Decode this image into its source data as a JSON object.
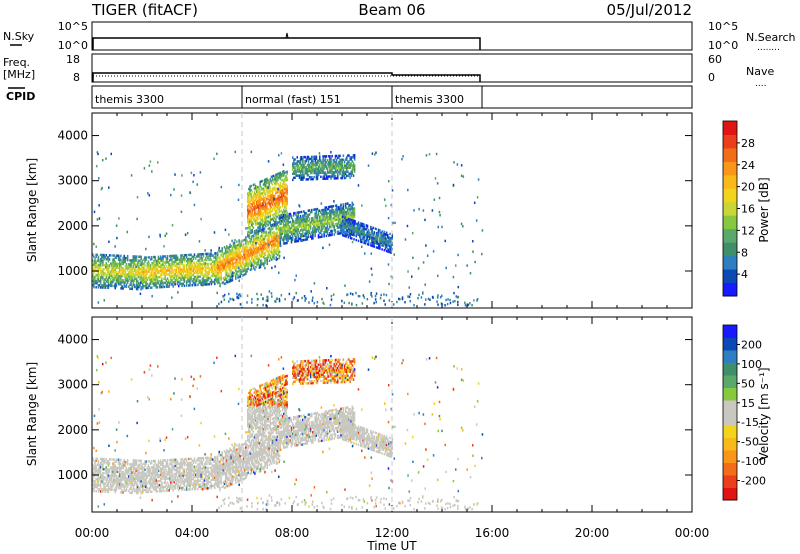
{
  "header": {
    "title": "TIGER (fitACF)",
    "beam": "Beam 06",
    "date": "05/Jul/2012"
  },
  "strip_nsky": {
    "left_label": "N.Sky",
    "left_ticks": [
      "10^5",
      "10^0"
    ],
    "right_ticks": [
      "10^5",
      "10^0"
    ],
    "right_label": "N.Search",
    "right_key": "........"
  },
  "strip_freq": {
    "left_label_line1": "Freq.",
    "left_label_line2": "[MHz]",
    "left_ticks": [
      "18",
      "8"
    ],
    "right_ticks": [
      "60",
      "0"
    ],
    "right_label": "Nave",
    "right_key": "...."
  },
  "cpid": {
    "label": "CPID",
    "segments": [
      {
        "label": "themis 3300",
        "start_h": 0.0,
        "end_h": 6.0
      },
      {
        "label": "normal (fast) 151",
        "start_h": 6.0,
        "end_h": 12.0
      },
      {
        "label": "themis 3300",
        "start_h": 12.0,
        "end_h": 15.6
      }
    ]
  },
  "chart_data": [
    {
      "type": "heatmap",
      "name": "power-panel",
      "ylabel": "Slant Range [km]",
      "yticks": [
        "1000",
        "2000",
        "3000",
        "4000"
      ],
      "ylim": [
        180,
        4500
      ],
      "xlim_hours": [
        0,
        24
      ],
      "colorbar_label": "Power [dB]",
      "colorbar_ticks": [
        "28",
        "24",
        "20",
        "16",
        "12",
        "8",
        "4"
      ],
      "colorbar_range": [
        0,
        32
      ],
      "colors": [
        "#1a1aff",
        "#0c49b5",
        "#2f7ec2",
        "#3f8f6a",
        "#5aa86a",
        "#86c83e",
        "#c8d636",
        "#f2d41c",
        "#f9b918",
        "#f8961a",
        "#f36c18",
        "#ea3f1a",
        "#e11414"
      ],
      "bands": [
        {
          "h0": 0.0,
          "h1": 2.0,
          "r_start": 1000,
          "r_end": 950,
          "width": 750,
          "peak": 18
        },
        {
          "h0": 2.0,
          "h1": 5.0,
          "r_start": 950,
          "r_end": 1050,
          "width": 700,
          "peak": 21
        },
        {
          "h0": 5.0,
          "h1": 7.5,
          "r_start": 1050,
          "r_end": 1700,
          "width": 850,
          "peak": 25
        },
        {
          "h0": 6.2,
          "h1": 7.8,
          "r_start": 2300,
          "r_end": 2700,
          "width": 1100,
          "peak": 27
        },
        {
          "h0": 7.5,
          "h1": 10.5,
          "r_start": 1900,
          "r_end": 2200,
          "width": 650,
          "peak": 14
        },
        {
          "h0": 10.0,
          "h1": 12.0,
          "r_start": 2000,
          "r_end": 1600,
          "width": 450,
          "peak": 8
        },
        {
          "h0": 8.0,
          "h1": 10.5,
          "r_start": 3250,
          "r_end": 3300,
          "width": 500,
          "peak": 12
        }
      ]
    },
    {
      "type": "heatmap",
      "name": "velocity-panel",
      "ylabel": "Slant Range [km]",
      "yticks": [
        "1000",
        "2000",
        "3000",
        "4000"
      ],
      "ylim": [
        180,
        4500
      ],
      "xlim_hours": [
        0,
        24
      ],
      "xticks": [
        "00:00",
        "04:00",
        "08:00",
        "12:00",
        "16:00",
        "20:00",
        "00:00"
      ],
      "xlabel": "Time UT",
      "colorbar_label": "Velocity [m s⁻¹]",
      "colorbar_ticks": [
        "200",
        "100",
        "50",
        "15",
        "-15",
        "-50",
        "-100",
        "-200"
      ],
      "colorbar_range": [
        -250,
        250
      ],
      "colors": [
        "#e11414",
        "#ea3f1a",
        "#f36c18",
        "#f8961a",
        "#f9b918",
        "#f2d41c",
        "#c8c8c0",
        "#c8c8c0",
        "#86c83e",
        "#5aa86a",
        "#3f8f6a",
        "#2f7ec2",
        "#0c49b5",
        "#1a1aff"
      ]
    }
  ]
}
